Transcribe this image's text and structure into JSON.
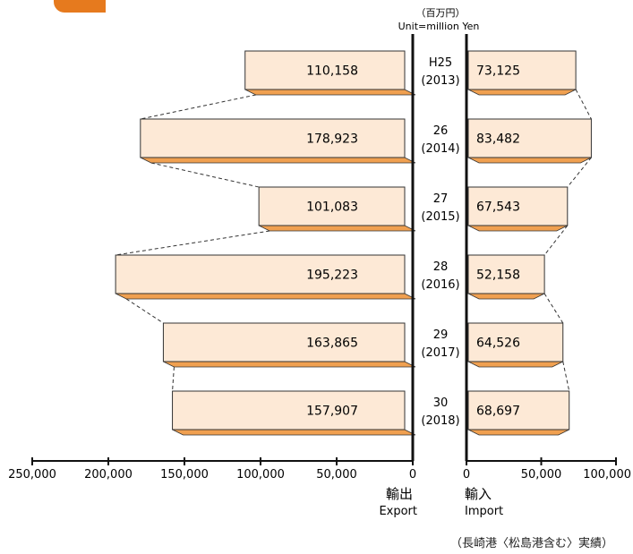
{
  "unit_line1": "（百万円）",
  "unit_line2": "Unit=million Yen",
  "export_label_jp": "輸出",
  "export_label_en": "Export",
  "import_label_jp": "輸入",
  "import_label_en": "Import",
  "footnote": "（長崎港〈松島港含む〉実績）",
  "colors": {
    "bar_face": "#fde9d6",
    "bar_shadow": "#f0a050",
    "axis": "#111111",
    "tab": "#e67a1e"
  },
  "chart_data": {
    "type": "bar",
    "orientation": "horizontal-butterfly",
    "categories": [
      {
        "era": "H25",
        "year": "(2013)"
      },
      {
        "era": "26",
        "year": "(2014)"
      },
      {
        "era": "27",
        "year": "(2015)"
      },
      {
        "era": "28",
        "year": "(2016)"
      },
      {
        "era": "29",
        "year": "(2017)"
      },
      {
        "era": "30",
        "year": "(2018)"
      }
    ],
    "series": [
      {
        "name": "輸出 Export",
        "values": [
          110158,
          178923,
          101083,
          195223,
          163865,
          157907
        ],
        "labels": [
          "110,158",
          "178,923",
          "101,083",
          "195,223",
          "163,865",
          "157,907"
        ]
      },
      {
        "name": "輸入 Import",
        "values": [
          73125,
          83482,
          67543,
          52158,
          64526,
          68697
        ],
        "labels": [
          "73,125",
          "83,482",
          "67,543",
          "52,158",
          "64,526",
          "68,697"
        ]
      }
    ],
    "export_axis": {
      "range": [
        0,
        250000
      ],
      "ticks": [
        "250,000",
        "200,000",
        "150,000",
        "100,000",
        "50,000",
        "0"
      ]
    },
    "import_axis": {
      "range": [
        0,
        100000
      ],
      "ticks": [
        "0",
        "50,000",
        "100,000"
      ]
    },
    "connectors": "dashed",
    "grid": false
  }
}
